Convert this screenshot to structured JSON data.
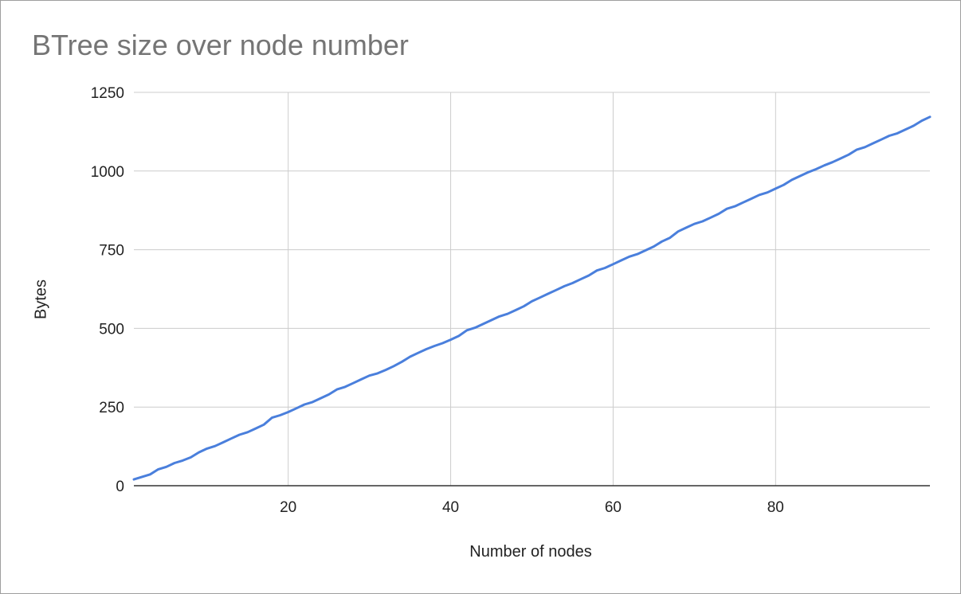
{
  "chart_data": {
    "type": "line",
    "title": "BTree size over node number",
    "xlabel": "Number of nodes",
    "ylabel": "Bytes",
    "xlim": [
      1,
      99
    ],
    "ylim": [
      0,
      1250
    ],
    "xticks": [
      20,
      40,
      60,
      80
    ],
    "yticks": [
      0,
      250,
      500,
      750,
      1000,
      1250
    ],
    "grid": true,
    "legend": "none",
    "series": [
      {
        "color": "#4a7fdc",
        "x": [
          1,
          2,
          3,
          4,
          5,
          6,
          7,
          8,
          9,
          10,
          11,
          12,
          13,
          14,
          15,
          16,
          17,
          18,
          19,
          20,
          21,
          22,
          23,
          24,
          25,
          26,
          27,
          28,
          29,
          30,
          31,
          32,
          33,
          34,
          35,
          36,
          37,
          38,
          39,
          40,
          41,
          42,
          43,
          44,
          45,
          46,
          47,
          48,
          49,
          50,
          51,
          52,
          53,
          54,
          55,
          56,
          57,
          58,
          59,
          60,
          61,
          62,
          63,
          64,
          65,
          66,
          67,
          68,
          69,
          70,
          71,
          72,
          73,
          74,
          75,
          76,
          77,
          78,
          79,
          80,
          81,
          82,
          83,
          84,
          85,
          86,
          87,
          88,
          89,
          90,
          91,
          92,
          93,
          94,
          95,
          96,
          97,
          98,
          99
        ],
        "y": [
          20,
          28,
          36,
          52,
          60,
          72,
          80,
          90,
          106,
          118,
          126,
          138,
          150,
          162,
          170,
          182,
          194,
          216,
          224,
          234,
          246,
          258,
          266,
          278,
          290,
          306,
          314,
          326,
          338,
          350,
          357,
          368,
          380,
          394,
          410,
          422,
          434,
          444,
          453,
          464,
          476,
          494,
          502,
          514,
          526,
          538,
          546,
          558,
          570,
          586,
          598,
          610,
          622,
          634,
          644,
          656,
          668,
          684,
          692,
          704,
          716,
          728,
          736,
          748,
          760,
          776,
          788,
          808,
          820,
          832,
          840,
          852,
          864,
          880,
          888,
          900,
          912,
          924,
          932,
          944,
          956,
          972,
          984,
          996,
          1006,
          1018,
          1028,
          1040,
          1052,
          1068,
          1076,
          1088,
          1100,
          1112,
          1120,
          1132,
          1144,
          1160,
          1172
        ]
      }
    ]
  }
}
